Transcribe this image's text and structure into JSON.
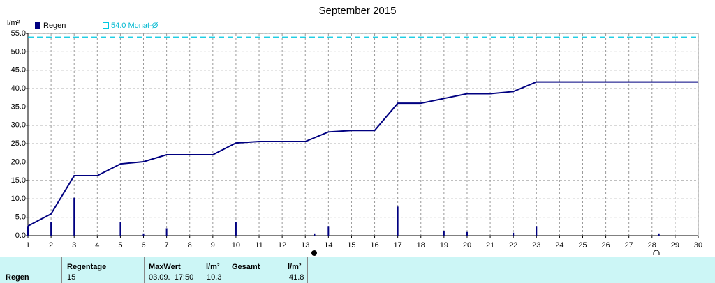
{
  "chart_data": {
    "type": "rain",
    "title": "September 2015",
    "y_unit": "l/m²",
    "x": [
      1,
      2,
      3,
      4,
      5,
      6,
      7,
      8,
      9,
      10,
      11,
      12,
      13,
      14,
      15,
      16,
      17,
      18,
      19,
      20,
      21,
      22,
      23,
      24,
      25,
      26,
      27,
      28,
      29,
      30
    ],
    "xlim": [
      1,
      30
    ],
    "xticks": [
      1,
      2,
      3,
      4,
      5,
      6,
      7,
      8,
      9,
      10,
      11,
      12,
      13,
      14,
      15,
      16,
      17,
      18,
      19,
      20,
      21,
      22,
      23,
      24,
      25,
      26,
      27,
      28,
      29,
      30
    ],
    "ylim": [
      0,
      55
    ],
    "yticks": [
      {
        "value": 0,
        "label": "0.0"
      },
      {
        "value": 5,
        "label": "5.0"
      },
      {
        "value": 10,
        "label": "10.0"
      },
      {
        "value": 15,
        "label": "15.0"
      },
      {
        "value": 20,
        "label": "20.0"
      },
      {
        "value": 25,
        "label": "25.0"
      },
      {
        "value": 30,
        "label": "30.0"
      },
      {
        "value": 35,
        "label": "35.0"
      },
      {
        "value": 40,
        "label": "40.0"
      },
      {
        "value": 45,
        "label": "45.0"
      },
      {
        "value": 50,
        "label": "50.0"
      },
      {
        "value": 55,
        "label": "55.0"
      }
    ],
    "grid": true,
    "series": [
      {
        "name": "Regen",
        "color": "#000080",
        "x": [
          1,
          2,
          3,
          5,
          6,
          7,
          10,
          13.4,
          14,
          17,
          19,
          20,
          22,
          23,
          28.3
        ],
        "values": [
          2.6,
          3.6,
          10.3,
          3.6,
          0.6,
          2.0,
          3.6,
          0.6,
          2.6,
          7.9,
          1.3,
          1.0,
          0.8,
          2.6,
          0.6
        ]
      },
      {
        "color": "#000080",
        "values": [
          2.6,
          5.9,
          16.3,
          16.3,
          19.5,
          20.1,
          22.0,
          22.0,
          22.0,
          25.2,
          25.6,
          25.6,
          25.6,
          28.2,
          28.6,
          28.6,
          36.0,
          36.0,
          37.3,
          38.6,
          38.6,
          39.2,
          41.8,
          41.8,
          41.8,
          41.8,
          41.8,
          41.8,
          41.8,
          41.8
        ]
      }
    ],
    "average": {
      "value": 54.0,
      "label": "54.0 Monat-Ø",
      "color": "#00c8e0"
    }
  },
  "table": {
    "row_label": "Regen",
    "headers": [
      "Regentage",
      "MaxWert",
      "l/m²",
      "Gesamt",
      "l/m²"
    ],
    "values": [
      15,
      "03.09.  17:50",
      10.3,
      41.8
    ]
  }
}
